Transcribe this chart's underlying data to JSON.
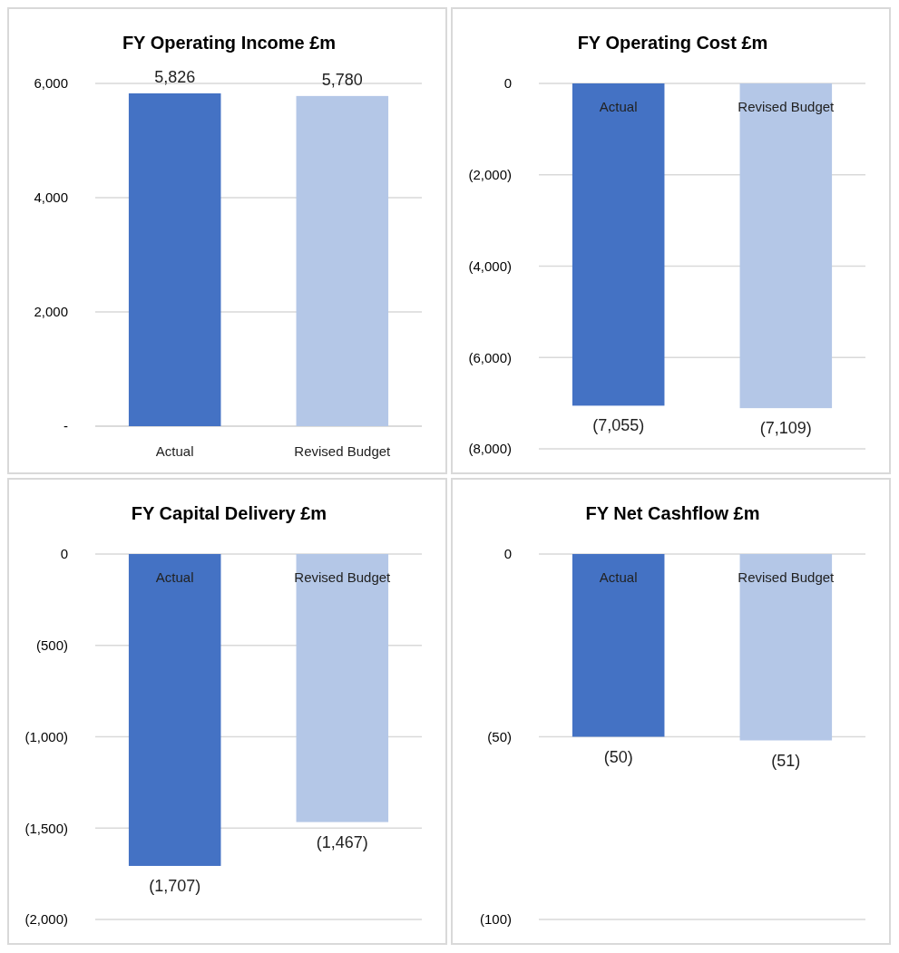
{
  "chart_data": [
    {
      "type": "bar",
      "title": "FY Operating Income £m",
      "categories": [
        "Actual",
        "Revised Budget"
      ],
      "values": [
        5826,
        5780
      ],
      "colors": [
        "#4472c4",
        "#b4c7e7"
      ],
      "value_labels": [
        "5,826",
        "5,780"
      ],
      "ylim": [
        0,
        6000
      ],
      "yticks": [
        {
          "value": 0,
          "label": "-"
        },
        {
          "value": 2000,
          "label": "2,000"
        },
        {
          "value": 4000,
          "label": "4,000"
        },
        {
          "value": 6000,
          "label": "6,000"
        }
      ],
      "grid": "y"
    },
    {
      "type": "bar",
      "title": "FY Operating Cost £m",
      "categories": [
        "Actual",
        "Revised Budget"
      ],
      "values": [
        -7055,
        -7109
      ],
      "colors": [
        "#4472c4",
        "#b4c7e7"
      ],
      "value_labels": [
        "(7,055)",
        "(7,109)"
      ],
      "ylim": [
        -8000,
        0
      ],
      "yticks": [
        {
          "value": 0,
          "label": "0"
        },
        {
          "value": -2000,
          "label": "(2,000)"
        },
        {
          "value": -4000,
          "label": "(4,000)"
        },
        {
          "value": -6000,
          "label": "(6,000)"
        },
        {
          "value": -8000,
          "label": "(8,000)"
        }
      ],
      "grid": "y"
    },
    {
      "type": "bar",
      "title": "FY Capital Delivery £m",
      "categories": [
        "Actual",
        "Revised Budget"
      ],
      "values": [
        -1707,
        -1467
      ],
      "colors": [
        "#4472c4",
        "#b4c7e7"
      ],
      "value_labels": [
        "(1,707)",
        "(1,467)"
      ],
      "ylim": [
        -2000,
        0
      ],
      "yticks": [
        {
          "value": 0,
          "label": "0"
        },
        {
          "value": -500,
          "label": "(500)"
        },
        {
          "value": -1000,
          "label": "(1,000)"
        },
        {
          "value": -1500,
          "label": "(1,500)"
        },
        {
          "value": -2000,
          "label": "(2,000)"
        }
      ],
      "grid": "y"
    },
    {
      "type": "bar",
      "title": "FY Net Cashflow £m",
      "categories": [
        "Actual",
        "Revised Budget"
      ],
      "values": [
        -50,
        -51
      ],
      "colors": [
        "#4472c4",
        "#b4c7e7"
      ],
      "value_labels": [
        "(50)",
        "(51)"
      ],
      "ylim": [
        -100,
        0
      ],
      "yticks": [
        {
          "value": 0,
          "label": "0"
        },
        {
          "value": -50,
          "label": "(50)"
        },
        {
          "value": -100,
          "label": "(100)"
        }
      ],
      "grid": "y"
    }
  ]
}
